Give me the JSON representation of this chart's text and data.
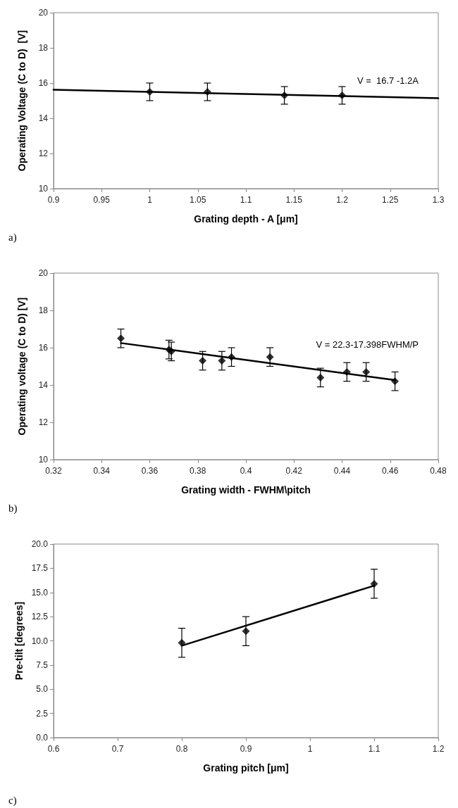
{
  "chart_data": [
    {
      "type": "scatter",
      "xlabel": "Grating depth - A [μm]",
      "ylabel": "Operating Voltage (C to D)  [V]",
      "xlim": [
        0.9,
        1.3
      ],
      "xticks": [
        0.9,
        0.95,
        1,
        1.05,
        1.1,
        1.15,
        1.2,
        1.25,
        1.3
      ],
      "ylim": [
        10,
        20
      ],
      "yticks": [
        10,
        12,
        14,
        16,
        18,
        20
      ],
      "grid": false,
      "annotations": [
        "V =  16.7 -1.2A",
        "a)"
      ],
      "series": [
        {
          "color": "#000000",
          "marker": "diamond",
          "x": [
            1,
            1.06,
            1.14,
            1.2
          ],
          "values": [
            15.5,
            15.5,
            15.3,
            15.3
          ],
          "errors": [
            0.5,
            0.5,
            0.5,
            0.5
          ]
        },
        {
          "type": "line",
          "color": "#000000",
          "marker": "none",
          "line_style": "solid",
          "x": [
            0.9,
            1.3
          ],
          "values": [
            15.62,
            15.14
          ]
        }
      ]
    },
    {
      "type": "scatter",
      "xlabel": "Grating width - FWHM\\pitch",
      "ylabel": "Operating voltage (C to D) [V]",
      "xlim": [
        0.32,
        0.48
      ],
      "xticks": [
        0.32,
        0.34,
        0.36,
        0.38,
        0.4,
        0.42,
        0.44,
        0.46,
        0.48
      ],
      "ylim": [
        10,
        20
      ],
      "yticks": [
        10,
        12,
        14,
        16,
        18,
        20
      ],
      "grid": false,
      "annotations": [
        "V = 22.3-17.398FWHM/P",
        "b)"
      ],
      "series": [
        {
          "color": "#000000",
          "marker": "diamond",
          "x": [
            0.348,
            0.368,
            0.369,
            0.382,
            0.39,
            0.394,
            0.41,
            0.431,
            0.442,
            0.45,
            0.462
          ],
          "values": [
            16.5,
            15.9,
            15.8,
            15.3,
            15.3,
            15.5,
            15.5,
            14.4,
            14.7,
            14.7,
            14.2
          ],
          "errors": [
            0.5,
            0.5,
            0.5,
            0.5,
            0.5,
            0.5,
            0.5,
            0.5,
            0.5,
            0.5,
            0.5
          ]
        },
        {
          "type": "line",
          "color": "#000000",
          "marker": "none",
          "line_style": "solid",
          "x": [
            0.348,
            0.462
          ],
          "values": [
            16.25,
            14.26
          ]
        }
      ]
    },
    {
      "type": "scatter",
      "xlabel": "Grating pitch [μm]",
      "ylabel": "Pre-tilt [degrees]",
      "xlim": [
        0.6,
        1.2
      ],
      "xticks": [
        0.6,
        0.7,
        0.8,
        0.9,
        1,
        1.1,
        1.2
      ],
      "ylim": [
        0,
        20
      ],
      "yticks": [
        {
          "value": 0,
          "label": "0.0"
        },
        2.5,
        {
          "value": 5,
          "label": "5.0"
        },
        7.5,
        {
          "value": 10,
          "label": "10.0"
        },
        12.5,
        {
          "value": 15,
          "label": "15.0"
        },
        17.5,
        {
          "value": 20,
          "label": "20.0"
        }
      ],
      "grid": false,
      "annotations": [
        "c)"
      ],
      "series": [
        {
          "color": "#000000",
          "marker": "diamond",
          "x": [
            0.8,
            0.9,
            1.1
          ],
          "values": [
            9.8,
            11.0,
            15.9
          ],
          "errors": [
            1.5,
            1.5,
            1.5
          ]
        },
        {
          "type": "line",
          "color": "#000000",
          "marker": "none",
          "line_style": "solid",
          "x": [
            0.8,
            1.1
          ],
          "values": [
            9.5,
            15.7
          ]
        }
      ]
    }
  ]
}
